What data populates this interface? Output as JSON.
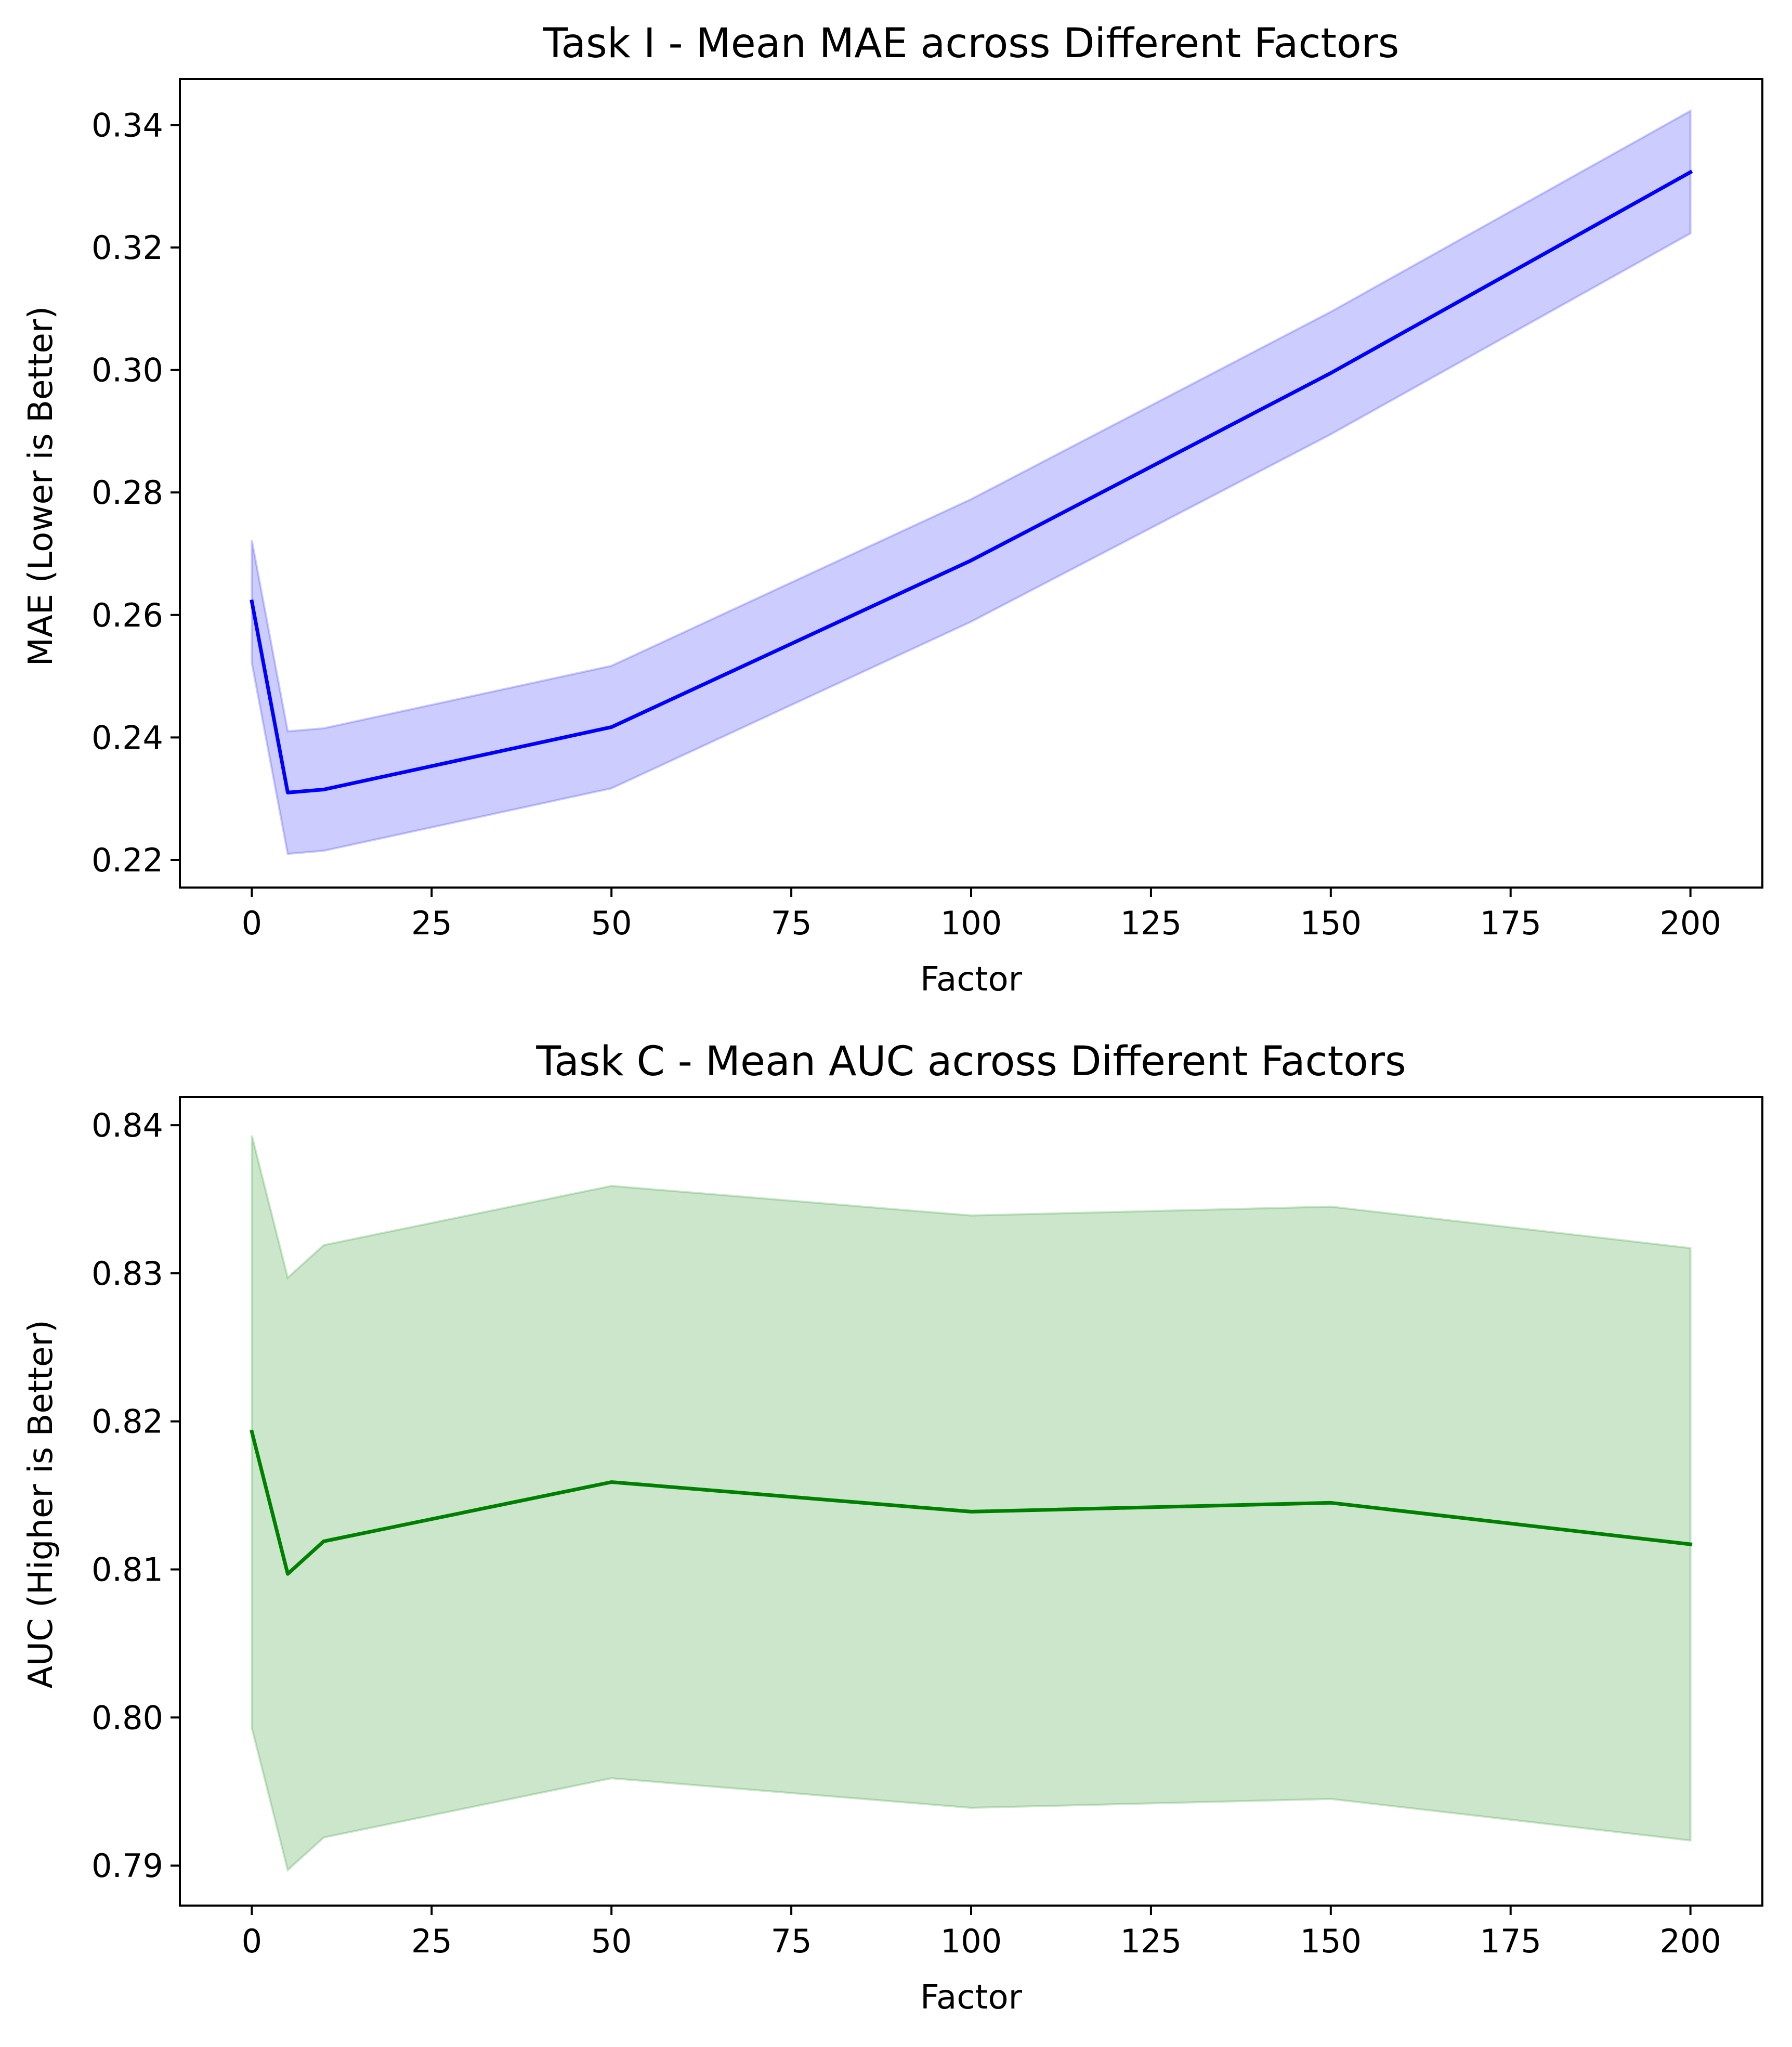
{
  "chart_data": [
    {
      "type": "line",
      "title": "Task I - Mean MAE across Different Factors",
      "xlabel": "Factor",
      "ylabel": "MAE (Lower is Better)",
      "xlim": [
        -10,
        210
      ],
      "ylim": [
        0.2155,
        0.3475
      ],
      "xticks": [
        0,
        25,
        50,
        75,
        100,
        125,
        150,
        175,
        200
      ],
      "yticks": [
        0.22,
        0.24,
        0.26,
        0.28,
        0.3,
        0.32,
        0.34
      ],
      "ytick_labels": [
        "0.22",
        "0.24",
        "0.26",
        "0.28",
        "0.30",
        "0.32",
        "0.34"
      ],
      "grid": false,
      "series": [
        {
          "x": [
            0,
            5,
            10,
            50,
            100,
            150,
            200
          ],
          "values": [
            0.2622,
            0.231,
            0.2315,
            0.2417,
            0.2689,
            0.2995,
            0.3323
          ],
          "lower": [
            0.2522,
            0.221,
            0.2215,
            0.2317,
            0.2589,
            0.2895,
            0.3223
          ],
          "upper": [
            0.2722,
            0.241,
            0.2415,
            0.2517,
            0.2789,
            0.3095,
            0.3423
          ],
          "color": "#0000ff",
          "band_color": "#0000ff"
        }
      ]
    },
    {
      "type": "line",
      "title": "Task C - Mean AUC across Different Factors",
      "xlabel": "Factor",
      "ylabel": "AUC (Higher is Better)",
      "xlim": [
        -10,
        210
      ],
      "ylim": [
        0.7873,
        0.8419
      ],
      "xticks": [
        0,
        25,
        50,
        75,
        100,
        125,
        150,
        175,
        200
      ],
      "yticks": [
        0.79,
        0.8,
        0.81,
        0.82,
        0.83,
        0.84
      ],
      "ytick_labels": [
        "0.79",
        "0.80",
        "0.81",
        "0.82",
        "0.83",
        "0.84"
      ],
      "grid": false,
      "series": [
        {
          "x": [
            0,
            5,
            10,
            50,
            100,
            150,
            200
          ],
          "values": [
            0.8193,
            0.8097,
            0.8119,
            0.8159,
            0.8139,
            0.8145,
            0.8117
          ],
          "lower": [
            0.7993,
            0.7897,
            0.7919,
            0.7959,
            0.7939,
            0.7945,
            0.7917
          ],
          "upper": [
            0.8393,
            0.8297,
            0.8319,
            0.8359,
            0.8339,
            0.8345,
            0.8317
          ],
          "color": "#008000",
          "band_color": "#008000"
        }
      ]
    }
  ]
}
